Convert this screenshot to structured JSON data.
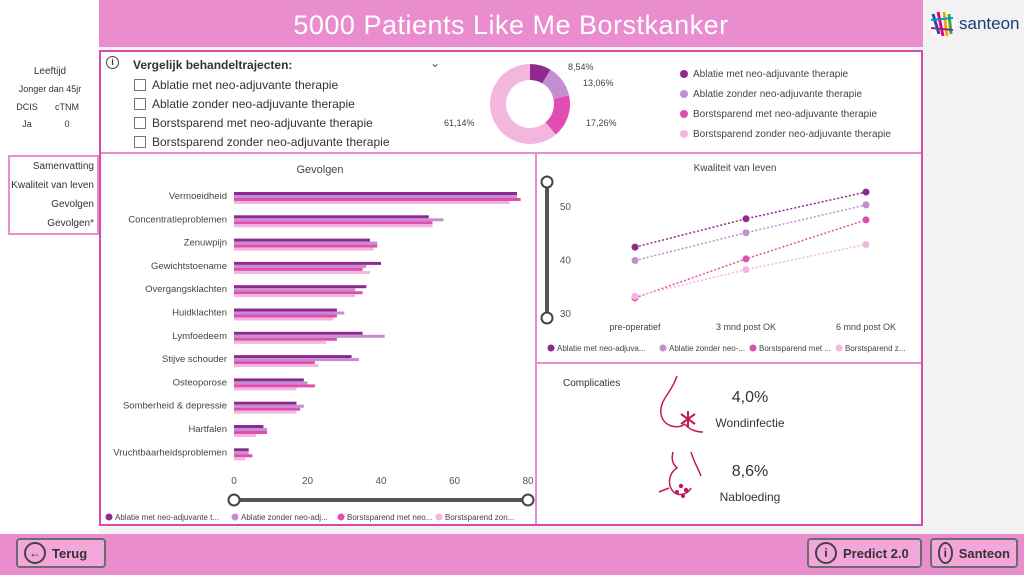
{
  "header": {
    "title": "5000  Patients Like Me Borstkanker",
    "logo_text": "santeon"
  },
  "patient": {
    "age_label": "Leeftijd",
    "age_value": "Jonger dan 45jr",
    "col1_label": "DCIS",
    "col2_label": "cTNM",
    "col1_value": "Ja",
    "col2_value": "0"
  },
  "nav": {
    "items": [
      "Samenvatting",
      "Kwaliteit van leven",
      "Gevolgen",
      "Gevolgen*"
    ]
  },
  "compare": {
    "title": "Vergelijk behandeltrajecten:",
    "options": [
      "Ablatie met neo-adjuvante therapie",
      "Ablatie zonder neo-adjuvante therapie",
      "Borstsparend met neo-adjuvante therapie",
      "Borstsparend zonder neo-adjuvante therapie"
    ]
  },
  "colors": {
    "s1": "#8e2a8f",
    "s2": "#c58dd2",
    "s3": "#e04fb0",
    "s4": "#f2b6df",
    "accent": "#ea8dcf"
  },
  "donut": {
    "labels": [
      "8,54%",
      "13,06%",
      "17,26%",
      "61,14%"
    ],
    "values": [
      8.54,
      13.06,
      17.26,
      61.14
    ]
  },
  "legend": {
    "items": [
      "Ablatie met neo-adjuvante therapie",
      "Ablatie zonder neo-adjuvante therapie",
      "Borstsparend met neo-adjuvante therapie",
      "Borstsparend zonder neo-adjuvante therapie"
    ]
  },
  "chart_data": [
    {
      "type": "bar",
      "title": "Gevolgen",
      "orientation": "horizontal",
      "categories": [
        "Vermoeidheid",
        "Concentratieproblemen",
        "Zenuwpijn",
        "Gewichtstoename",
        "Overgangsklachten",
        "Huidklachten",
        "Lymfoedeem",
        "Stijve schouder",
        "Osteoporose",
        "Somberheid & depressie",
        "Hartfalen",
        "Vruchtbaarheidsproblemen"
      ],
      "series": [
        {
          "name": "Ablatie met neo-adjuvante t...",
          "values": [
            77,
            53,
            37,
            40,
            36,
            28,
            35,
            32,
            19,
            17,
            8,
            4
          ]
        },
        {
          "name": "Ablatie zonder neo-adj...",
          "values": [
            77,
            57,
            39,
            36,
            33,
            30,
            41,
            34,
            20,
            19,
            9,
            4
          ]
        },
        {
          "name": "Borstsparend met neo...",
          "values": [
            78,
            54,
            39,
            35,
            35,
            28,
            28,
            22,
            22,
            18,
            9,
            5
          ]
        },
        {
          "name": "Borstsparend zon...",
          "values": [
            75,
            54,
            38,
            37,
            33,
            27,
            25,
            23,
            17,
            17,
            6,
            3
          ]
        }
      ],
      "xlim": [
        0,
        80
      ],
      "xticks": [
        "0",
        "20",
        "40",
        "60",
        "80"
      ]
    },
    {
      "type": "line",
      "title": "Kwaliteit van leven",
      "categories": [
        "pre-operatief",
        "3 mnd post OK",
        "6 mnd post OK"
      ],
      "series": [
        {
          "name": "Ablatie met neo-adjuva...",
          "values": [
            42.5,
            47.8,
            52.8
          ]
        },
        {
          "name": "Ablatie zonder neo-...",
          "values": [
            40,
            45.2,
            50.4
          ]
        },
        {
          "name": "Borstsparend met ...",
          "values": [
            33,
            40.3,
            47.6
          ]
        },
        {
          "name": "Borstsparend z...",
          "values": [
            33.3,
            38.3,
            43
          ]
        }
      ],
      "ylim": [
        30,
        53
      ],
      "yticks": [
        "30",
        "40",
        "50"
      ]
    }
  ],
  "complications": {
    "title": "Complicaties",
    "items": [
      {
        "value": "4,0%",
        "label": "Wondinfectie"
      },
      {
        "value": "8,6%",
        "label": "Nabloeding"
      }
    ]
  },
  "footer": {
    "back": "Terug",
    "predict": "Predict 2.0",
    "santeon": "Santeon"
  }
}
